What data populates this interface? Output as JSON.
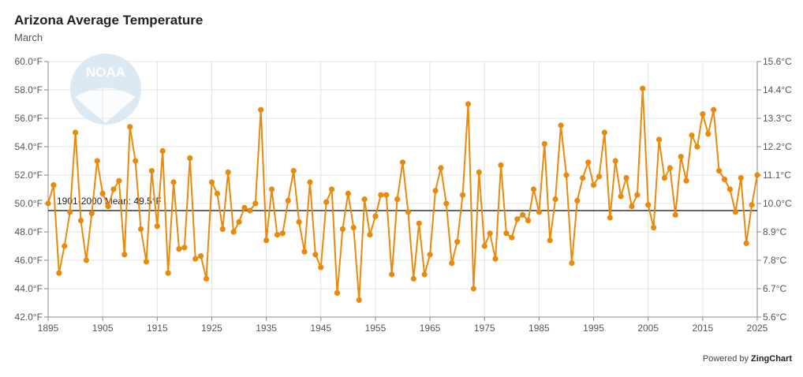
{
  "chart_data": {
    "type": "line",
    "title": "Arizona Average Temperature",
    "subtitle": "March",
    "x": [
      1895,
      1896,
      1897,
      1898,
      1899,
      1900,
      1901,
      1902,
      1903,
      1904,
      1905,
      1906,
      1907,
      1908,
      1909,
      1910,
      1911,
      1912,
      1913,
      1914,
      1915,
      1916,
      1917,
      1918,
      1919,
      1920,
      1921,
      1922,
      1923,
      1924,
      1925,
      1926,
      1927,
      1928,
      1929,
      1930,
      1931,
      1932,
      1933,
      1934,
      1935,
      1936,
      1937,
      1938,
      1939,
      1940,
      1941,
      1942,
      1943,
      1944,
      1945,
      1946,
      1947,
      1948,
      1949,
      1950,
      1951,
      1952,
      1953,
      1954,
      1955,
      1956,
      1957,
      1958,
      1959,
      1960,
      1961,
      1962,
      1963,
      1964,
      1965,
      1966,
      1967,
      1968,
      1969,
      1970,
      1971,
      1972,
      1973,
      1974,
      1975,
      1976,
      1977,
      1978,
      1979,
      1980,
      1981,
      1982,
      1983,
      1984,
      1985,
      1986,
      1987,
      1988,
      1989,
      1990,
      1991,
      1992,
      1993,
      1994,
      1995,
      1996,
      1997,
      1998,
      1999,
      2000,
      2001,
      2002,
      2003,
      2004,
      2005,
      2006,
      2007,
      2008,
      2009,
      2010,
      2011,
      2012,
      2013,
      2014,
      2015,
      2016,
      2017,
      2018,
      2019,
      2020,
      2021,
      2022,
      2023,
      2024,
      2025
    ],
    "values": [
      50.0,
      51.3,
      45.1,
      47.0,
      49.4,
      55.0,
      48.8,
      46.0,
      49.3,
      53.0,
      50.7,
      49.8,
      51.0,
      51.6,
      46.4,
      55.4,
      53.0,
      48.2,
      45.9,
      52.3,
      48.4,
      53.7,
      45.1,
      51.5,
      46.8,
      46.9,
      53.2,
      46.1,
      46.3,
      44.7,
      51.5,
      50.7,
      48.2,
      52.2,
      48.0,
      48.7,
      49.7,
      49.5,
      50.0,
      56.6,
      47.4,
      51.0,
      47.8,
      47.9,
      50.2,
      52.3,
      48.7,
      46.6,
      51.5,
      46.4,
      45.5,
      50.1,
      51.0,
      43.7,
      48.2,
      50.7,
      48.3,
      43.2,
      50.3,
      47.8,
      49.1,
      50.6,
      50.6,
      45.0,
      50.3,
      52.9,
      49.4,
      44.7,
      48.6,
      45.0,
      46.4,
      50.9,
      52.5,
      50.0,
      45.8,
      47.3,
      50.6,
      57.0,
      44.0,
      52.2,
      47.0,
      47.9,
      46.1,
      52.7,
      47.9,
      47.6,
      48.9,
      49.2,
      48.8,
      51.0,
      49.4,
      54.2,
      47.4,
      50.3,
      55.5,
      52.0,
      45.8,
      50.2,
      51.8,
      52.9,
      51.3,
      51.9,
      55.0,
      49.0,
      53.0,
      50.5,
      51.8,
      49.8,
      50.6,
      58.1,
      49.9,
      48.3,
      54.5,
      51.8,
      52.5,
      49.2,
      53.3,
      51.6,
      54.8,
      54.0,
      56.3,
      54.9,
      56.6,
      52.3,
      51.7,
      51.0,
      49.4,
      51.8,
      47.2,
      49.9,
      52.0
    ],
    "series_color": "#E88A0C",
    "reference_line": {
      "label": "1901-2000 Mean: 49.5°F",
      "value": 49.5,
      "color": "#333333"
    },
    "x_ticks": [
      1895,
      1905,
      1915,
      1925,
      1935,
      1945,
      1955,
      1965,
      1975,
      1985,
      1995,
      2005,
      2015,
      2025
    ],
    "y_ticks_left": [
      "42.0°F",
      "44.0°F",
      "46.0°F",
      "48.0°F",
      "50.0°F",
      "52.0°F",
      "54.0°F",
      "56.0°F",
      "58.0°F",
      "60.0°F"
    ],
    "y_ticks_right": [
      "5.6°C",
      "6.7°C",
      "7.8°C",
      "8.9°C",
      "10.0°C",
      "11.1°C",
      "12.2°C",
      "13.3°C",
      "14.4°C",
      "15.6°C"
    ],
    "xlim": [
      1895,
      2025
    ],
    "ylim": [
      42,
      60
    ],
    "grid": true
  },
  "footer": {
    "prefix": "Powered by",
    "brand": "ZingChart"
  },
  "logo_text": "NOAA"
}
